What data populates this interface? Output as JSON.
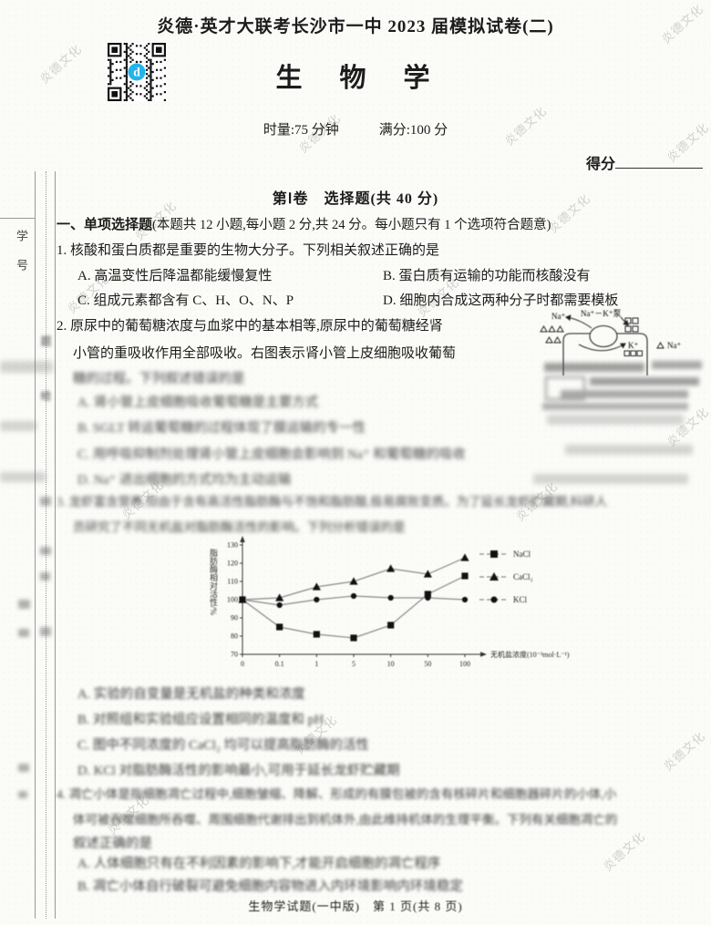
{
  "header": {
    "exam_title": "炎德·英才大联考长沙市一中 2023 届模拟试卷(二)",
    "subject_title": "生　物　学",
    "duration": "时量:75 分钟",
    "full_score": "满分:100 分",
    "score_label": "得分"
  },
  "margin": {
    "student_id": "学 号",
    "blur_char1": "题",
    "blur_char2": "给"
  },
  "section": {
    "part_title": "第Ⅰ卷　选择题(共 40 分)",
    "type_title_bold": "一、单项选择题",
    "type_title_rest": "(本题共 12 小题,每小题 2 分,共 24 分。每小题只有 1 个选项符合题意)"
  },
  "q1": {
    "stem": "1. 核酸和蛋白质都是重要的生物大分子。下列相关叙述正确的是",
    "option_a": "A. 高温变性后降温都能缓慢复性",
    "option_b": "B. 蛋白质有运输的功能而核酸没有",
    "option_c": "C. 组成元素都含有 C、H、O、N、P",
    "option_d": "D. 细胞内合成这两种分子时都需要模板"
  },
  "q2": {
    "stem_line1": "2. 原尿中的葡萄糖浓度与血浆中的基本相等,原尿中的葡萄糖经肾",
    "stem_line2": "小管的重吸收作用全部吸收。右图表示肾小管上皮细胞吸收葡萄",
    "stem_line3_blurred": "糖的过程。下列叙述错误的是",
    "option_a_blurred": "A. 肾小管上皮细胞吸收葡萄糖是主要方式",
    "option_b_blurred": "B. SGLT 转运葡萄糖的过程体现了膜运输的专一性",
    "option_c_blurred": "C. 用呼吸抑制剂处理肾小管上皮细胞会影响到 Na⁺ 和葡萄糖的吸收",
    "option_d_blurred": "D. Na⁺ 进出细胞的方式均为主动运输"
  },
  "q2_diagram": {
    "na_top": "Na⁺",
    "pump": "Na⁺－K⁺泵",
    "k": "K⁺",
    "na_right": "Na⁺"
  },
  "q3": {
    "stem_line1_blurred": "3. 龙虾富含营养,但由于含有高活性脂肪酶与不饱和脂肪酸,极易腐败变质。为了延长龙虾贮藏期,科研人",
    "stem_line2_blurred": "员研究了不同无机盐对脂肪酶活性的影响。下列分析错误的是",
    "option_a_blurred": "A. 实验的自变量是无机盐的种类和浓度",
    "option_b_blurred": "B. 对照组和实验组应设置相同的温度和 pH",
    "option_c_blurred": "C. 图中不同浓度的 CaCl₂ 均可以提高脂肪酶的活性",
    "option_d_blurred": "D. KCl 对脂肪酶活性的影响最小,可用于延长龙虾贮藏期"
  },
  "q4": {
    "stem_line1_blurred": "4. 凋亡小体是指细胞凋亡过程中,细胞皱缩、降解、形成的有膜包被的含有核碎片和细胞器碎片的小体,小",
    "stem_line2_blurred": "体可被吞噬细胞所吞噬、周围细胞代谢排出到机体外,由此维持机体的生理平衡。下列有关细胞凋亡的",
    "stem_line3_blurred": "叙述正确的是",
    "option_a_blurred": "A. 人体细胞只有在不利因素的影响下,才能开启细胞的凋亡程序",
    "option_b_blurred": "B. 凋亡小体自行破裂可避免细胞内容物进入内环境影响内环境稳定"
  },
  "footer": "生物学试题(一中版)　第 1 页(共 8 页)",
  "watermark": "炎德文化",
  "chart_data": {
    "type": "line",
    "x_categories": [
      "0",
      "0.1",
      "1",
      "5",
      "10",
      "50",
      "100"
    ],
    "series": [
      {
        "name": "NaCl",
        "marker": "square",
        "values": [
          100,
          85,
          81,
          79,
          86,
          103,
          113
        ]
      },
      {
        "name": "CaCl₂",
        "marker": "triangle",
        "values": [
          100,
          101,
          107,
          110,
          117,
          114,
          123
        ]
      },
      {
        "name": "KCl",
        "marker": "circle",
        "values": [
          100,
          97,
          100,
          102,
          101,
          101,
          100
        ]
      }
    ],
    "title": "",
    "xlabel": "无机盐浓度(10⁻³mol·L⁻¹)",
    "ylabel": "脂肪酶相对活性/%",
    "y_ticks": [
      70,
      80,
      90,
      100,
      110,
      120,
      130
    ],
    "ylim": [
      70,
      130
    ],
    "grid": false,
    "legend_position": "right"
  }
}
